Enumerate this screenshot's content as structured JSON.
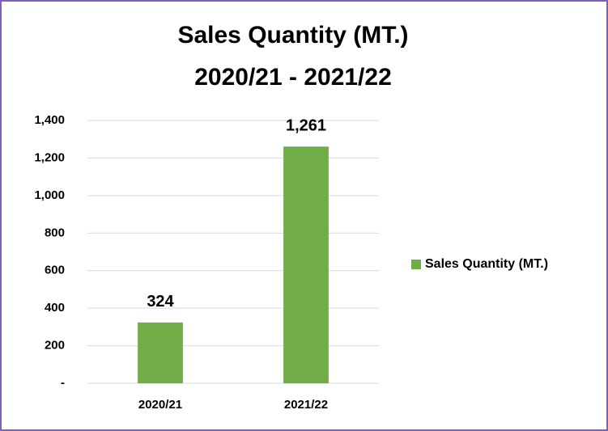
{
  "chart_data": {
    "type": "bar",
    "title": "Sales Quantity (MT.)",
    "subtitle": "2020/21 - 2021/22",
    "categories": [
      "2020/21",
      "2021/22"
    ],
    "series": [
      {
        "name": "Sales Quantity (MT.)",
        "color": "#70ad47",
        "values": [
          324,
          1261
        ],
        "value_labels": [
          "324",
          "1,261"
        ]
      }
    ],
    "ylim": [
      0,
      1400
    ],
    "yticks": [
      {
        "value": 0,
        "label": "-"
      },
      200,
      400,
      600,
      800,
      {
        "value": 1000,
        "label": "1,000"
      },
      {
        "value": 1200,
        "label": "1,200"
      },
      {
        "value": 1400,
        "label": "1,400"
      }
    ],
    "grid": true,
    "legend": "right"
  }
}
